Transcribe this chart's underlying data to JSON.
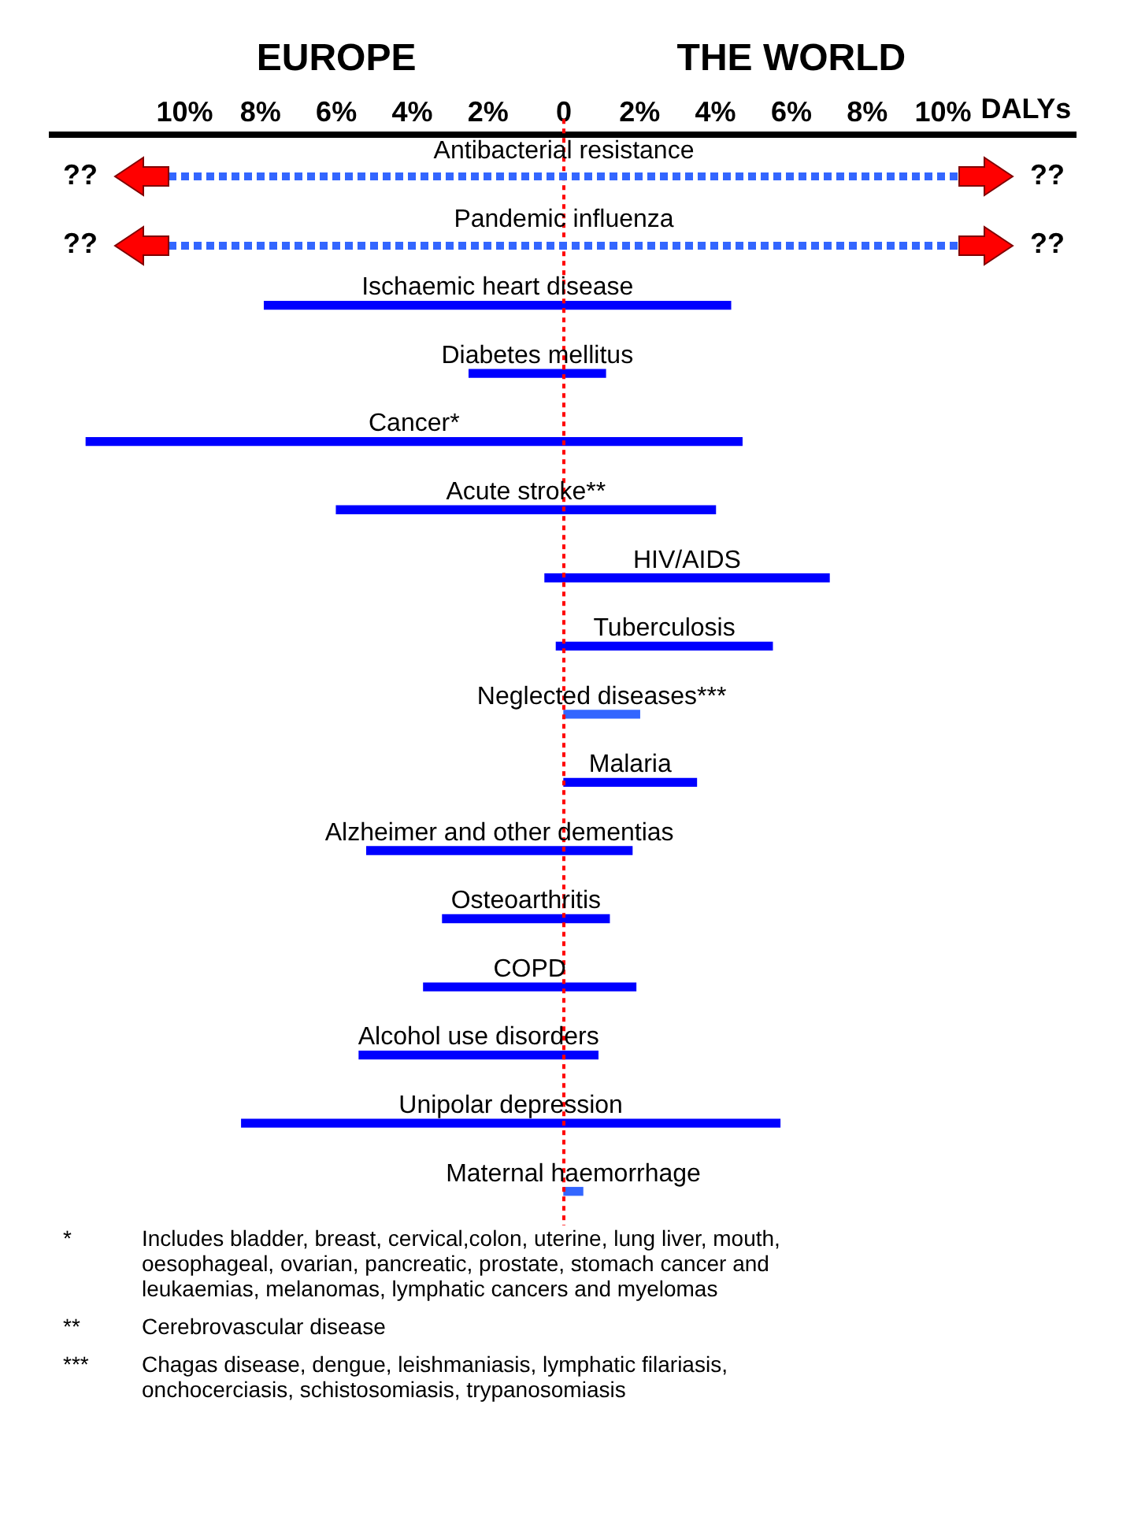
{
  "chart_data": {
    "type": "bar",
    "orientation": "horizontal",
    "xlabel": "DALYs",
    "categories": [
      "Antibacterial resistance",
      "Pandemic influenza",
      "Ischaemic heart disease",
      "Diabetes mellitus",
      "Cancer*",
      "Acute stroke**",
      "HIV/AIDS",
      "Tuberculosis",
      "Neglected diseases***",
      "Malaria",
      "Alzheimer and other dementias",
      "Osteoarthritis",
      "COPD",
      "Alcohol use disorders",
      "Unipolar depression",
      "Maternal haemorrhage"
    ],
    "base": [
      null,
      null,
      -7.9,
      -2.5,
      -12.6,
      -6.0,
      -0.5,
      -0.2,
      0,
      0,
      -5.2,
      -3.2,
      -3.7,
      -5.4,
      -8.5,
      0
    ],
    "values": [
      null,
      null,
      12.3,
      3.6,
      17.3,
      10.0,
      7.5,
      5.7,
      2.0,
      3.5,
      7.0,
      4.4,
      5.6,
      6.3,
      14.2,
      0.5
    ],
    "colors": [
      "#0000ff",
      "#0000ff",
      "#0000ff",
      "#0000ff",
      "#0000ff",
      "#0000ff",
      "#0000ff",
      "#0000ff",
      "#3366ff",
      "#0000ff",
      "#0000ff",
      "#0000ff",
      "#0000ff",
      "#0000ff",
      "#0000ff",
      "#3366ff"
    ],
    "xlim": [
      -13.5,
      13.5
    ],
    "xticks": [
      {
        "value": -10,
        "label": "10%"
      },
      {
        "value": -8,
        "label": "8%"
      },
      {
        "value": -6,
        "label": "6%"
      },
      {
        "value": -4,
        "label": "4%"
      },
      {
        "value": -2,
        "label": "2%"
      },
      0,
      {
        "value": 2,
        "label": "2%"
      },
      {
        "value": 4,
        "label": "4%"
      },
      {
        "value": 6,
        "label": "6%"
      },
      {
        "value": 8,
        "label": "8%"
      },
      {
        "value": 10,
        "label": "10%"
      }
    ],
    "grid": false,
    "ref_lines": [
      {
        "axis": "x",
        "value": 0,
        "label": null,
        "color": "#ff0000",
        "line_style": "dotted"
      }
    ],
    "annotations": [
      "EUROPE",
      "THE WORLD",
      "??",
      "??",
      "??",
      "??",
      "* Includes bladder, breast, cervical,colon, uterine, lung liver, mouth, oesophageal, ovarian, pancreatic, prostate, stomach cancer and leukaemias, melanomas, lymphatic cancers and myelomas",
      "** Cerebrovascular disease",
      "*** Chagas disease, dengue, leishmaniasis, lymphatic filariasis, onchocerciasis, schistosomiasis, trypanosomiasis"
    ]
  }
}
